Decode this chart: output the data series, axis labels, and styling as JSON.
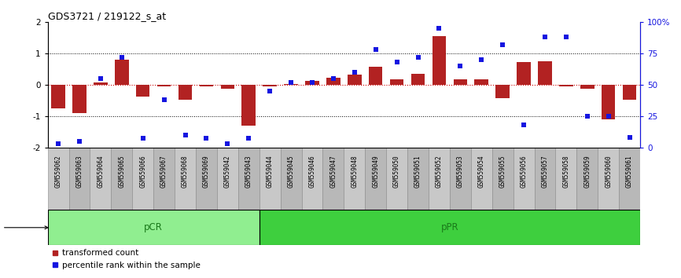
{
  "title": "GDS3721 / 219122_s_at",
  "samples": [
    "GSM559062",
    "GSM559063",
    "GSM559064",
    "GSM559065",
    "GSM559066",
    "GSM559067",
    "GSM559068",
    "GSM559069",
    "GSM559042",
    "GSM559043",
    "GSM559044",
    "GSM559045",
    "GSM559046",
    "GSM559047",
    "GSM559048",
    "GSM559049",
    "GSM559050",
    "GSM559051",
    "GSM559052",
    "GSM559053",
    "GSM559054",
    "GSM559055",
    "GSM559056",
    "GSM559057",
    "GSM559058",
    "GSM559059",
    "GSM559060",
    "GSM559061"
  ],
  "transformed_count": [
    -0.75,
    -0.9,
    0.08,
    0.8,
    -0.38,
    -0.05,
    -0.48,
    -0.05,
    -0.12,
    -1.3,
    -0.05,
    0.02,
    0.12,
    0.22,
    0.32,
    0.58,
    0.18,
    0.35,
    1.55,
    0.18,
    0.18,
    -0.42,
    0.72,
    0.75,
    -0.05,
    -0.12,
    -1.1,
    -0.48
  ],
  "percentile_rank": [
    3,
    5,
    55,
    72,
    7,
    38,
    10,
    7,
    3,
    7,
    45,
    52,
    52,
    55,
    60,
    78,
    68,
    72,
    95,
    65,
    70,
    82,
    18,
    88,
    88,
    25,
    25,
    8
  ],
  "pCR_count": 10,
  "pPR_count": 18,
  "ylim": [
    -2,
    2
  ],
  "yticks_left": [
    -2,
    -1,
    0,
    1,
    2
  ],
  "yticks_right": [
    0,
    25,
    50,
    75,
    100
  ],
  "bar_color": "#b22222",
  "dot_color": "#1515e0",
  "pCR_color": "#90ee90",
  "pPR_color": "#3ecf3e",
  "label_bg_odd": "#c8c8c8",
  "label_bg_even": "#b8b8b8",
  "zero_line_color": "#cc0000",
  "dotted_line_color": "#000000",
  "band_outline_color": "#000000"
}
